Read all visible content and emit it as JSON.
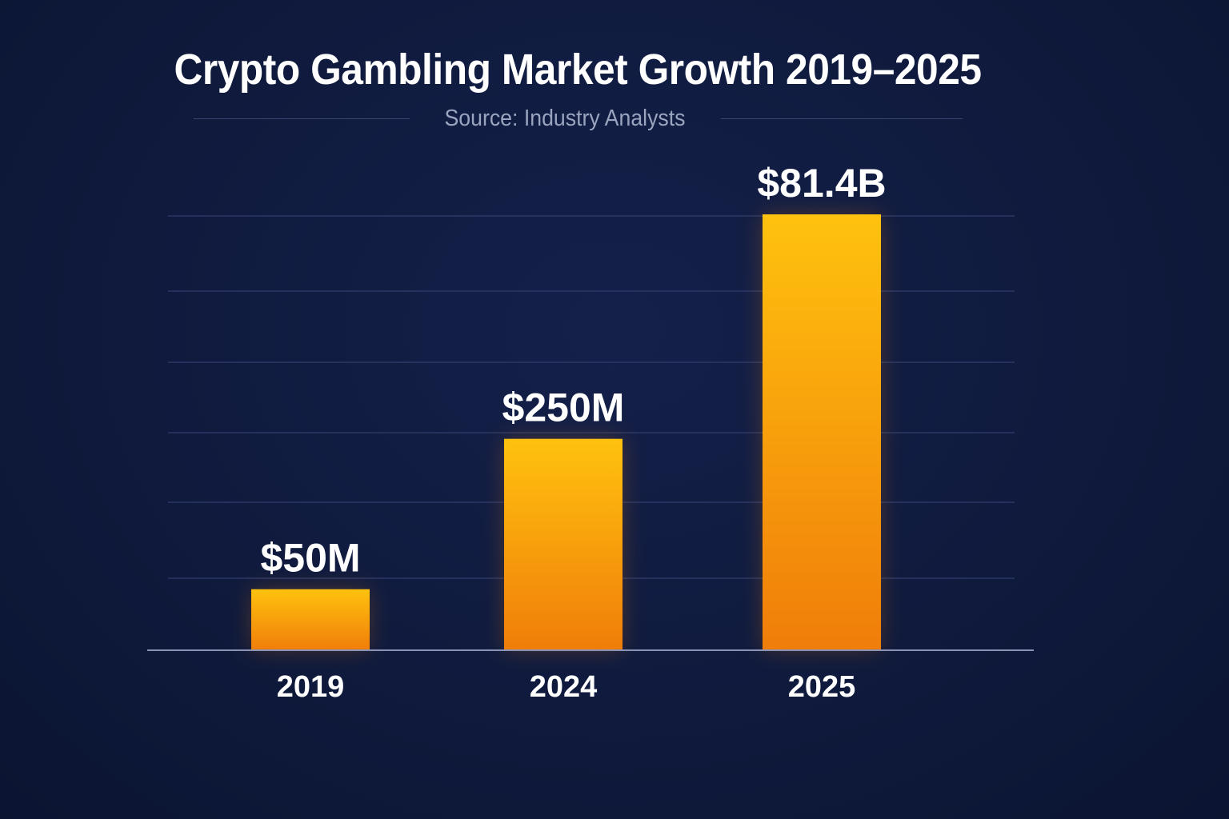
{
  "chart_data": {
    "type": "bar",
    "title": "Crypto Gambling Market Growth 2019–2025",
    "subtitle": "Source: Industry Analysts",
    "categories": [
      "2019",
      "2024",
      "2025"
    ],
    "values": [
      50,
      250,
      81400
    ],
    "value_unit": "million USD",
    "data_labels": [
      "$50M",
      "$250M",
      "$81.4B"
    ],
    "scale": "non-linear (bars not drawn to proportional scale)",
    "relative_bar_heights": [
      0.14,
      0.485,
      1.0
    ],
    "xlabel": "",
    "ylabel": "",
    "grid": true,
    "legend": "none",
    "colors": {
      "background": "#0f1a3d",
      "bar_top": "#ffc20e",
      "bar_bottom": "#f07d0a",
      "gridline": "#2c3866",
      "axis": "#8a93b5",
      "text": "#ffffff",
      "subtitle": "#9aa4bf"
    }
  }
}
